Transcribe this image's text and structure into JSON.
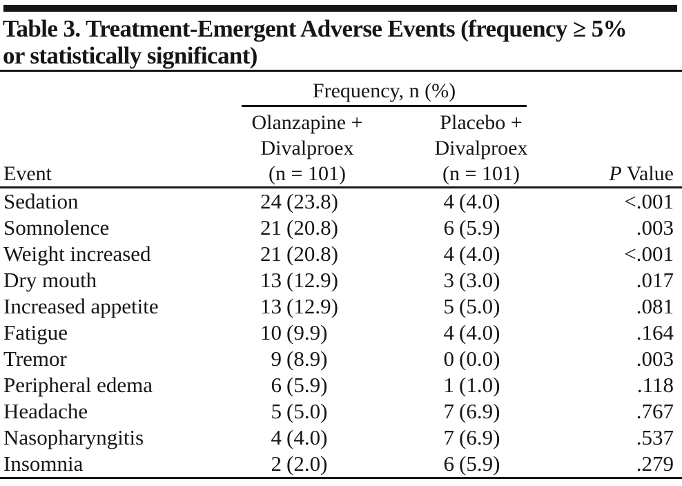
{
  "colors": {
    "ink": "#161616",
    "background": "#ffffff"
  },
  "table": {
    "title_lines": [
      "Table 3. Treatment-Emergent Adverse Events (frequency ≥ 5%",
      "or statistically significant)"
    ],
    "group_header": "Frequency, n (%)",
    "columns": {
      "event": "Event",
      "olanzapine_lines": [
        "Olanzapine +",
        "Divalproex",
        "(n = 101)"
      ],
      "placebo_lines": [
        "Placebo +",
        "Divalproex",
        "(n = 101)"
      ],
      "p_italic": "P",
      "p_rest": " Value"
    },
    "rows": [
      {
        "event": "Sedation",
        "olz_n": "24",
        "olz_pct": "(23.8)",
        "pbo_n": "4",
        "pbo_pct": "(4.0)",
        "p": "<.001"
      },
      {
        "event": "Somnolence",
        "olz_n": "21",
        "olz_pct": "(20.8)",
        "pbo_n": "6",
        "pbo_pct": "(5.9)",
        "p": ".003"
      },
      {
        "event": "Weight increased",
        "olz_n": "21",
        "olz_pct": "(20.8)",
        "pbo_n": "4",
        "pbo_pct": "(4.0)",
        "p": "<.001"
      },
      {
        "event": "Dry mouth",
        "olz_n": "13",
        "olz_pct": "(12.9)",
        "pbo_n": "3",
        "pbo_pct": "(3.0)",
        "p": ".017"
      },
      {
        "event": "Increased appetite",
        "olz_n": "13",
        "olz_pct": "(12.9)",
        "pbo_n": "5",
        "pbo_pct": "(5.0)",
        "p": ".081"
      },
      {
        "event": "Fatigue",
        "olz_n": "10",
        "olz_pct": "(9.9)",
        "pbo_n": "4",
        "pbo_pct": "(4.0)",
        "p": ".164"
      },
      {
        "event": "Tremor",
        "olz_n": "9",
        "olz_pct": "(8.9)",
        "pbo_n": "0",
        "pbo_pct": "(0.0)",
        "p": ".003"
      },
      {
        "event": "Peripheral edema",
        "olz_n": "6",
        "olz_pct": "(5.9)",
        "pbo_n": "1",
        "pbo_pct": "(1.0)",
        "p": ".118"
      },
      {
        "event": "Headache",
        "olz_n": "5",
        "olz_pct": "(5.0)",
        "pbo_n": "7",
        "pbo_pct": "(6.9)",
        "p": ".767"
      },
      {
        "event": "Nasopharyngitis",
        "olz_n": "4",
        "olz_pct": "(4.0)",
        "pbo_n": "7",
        "pbo_pct": "(6.9)",
        "p": ".537"
      },
      {
        "event": "Insomnia",
        "olz_n": "2",
        "olz_pct": "(2.0)",
        "pbo_n": "6",
        "pbo_pct": "(5.9)",
        "p": ".279"
      }
    ]
  }
}
